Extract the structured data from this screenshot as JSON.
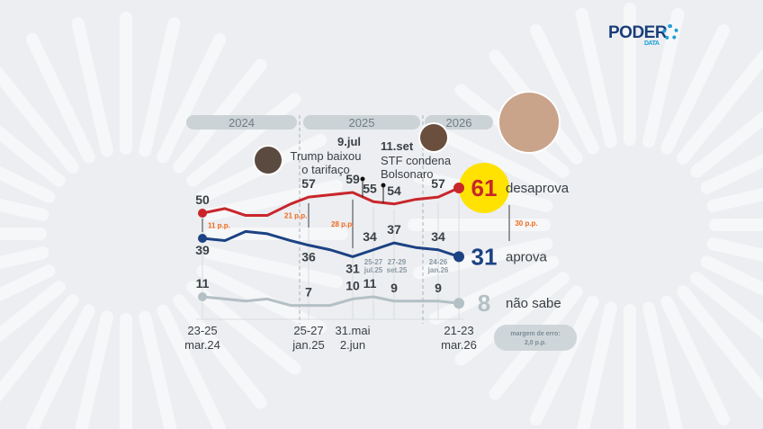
{
  "logo": {
    "text": "PODER",
    "sub": "DATA"
  },
  "years": [
    "2024",
    "2025",
    "2026"
  ],
  "colors": {
    "desaprova": "#c8262b",
    "aprova": "#1c4283",
    "nao_sabe": "#b3c0c6",
    "highlight": "#ffe200",
    "gap": "#f06a1e"
  },
  "annotations": {
    "trump": "Trump baixou",
    "trump2": "o tarifaço",
    "jul": "9.jul",
    "set": "11.set",
    "set2": "STF condena",
    "set3": "Bolsonaro"
  },
  "gaps": [
    "11 p.p.",
    "21 p.p.",
    "28 p.p.",
    "30 p.p."
  ],
  "margin": {
    "l1": "margem de erro:",
    "l2": "2,0 p.p."
  },
  "chart_data": {
    "type": "line",
    "x_labels": [
      [
        "23-25",
        "mar.24"
      ],
      [
        "25-27",
        "jan.25"
      ],
      [
        "31.mai",
        "2.jun"
      ],
      [
        "21-23",
        "mar.26"
      ]
    ],
    "small_x_labels": [
      [
        "25-27",
        "jul.25"
      ],
      [
        "27-29",
        "set.25"
      ],
      [
        "24-26",
        "jan.26"
      ]
    ],
    "series": [
      {
        "name": "desaprova",
        "values": [
          50,
          52,
          49,
          49,
          54,
          57,
          58,
          59,
          55,
          54,
          56,
          57,
          61
        ]
      },
      {
        "name": "aprova",
        "values": [
          39,
          38,
          42,
          41,
          38,
          36,
          34,
          31,
          34,
          37,
          35,
          34,
          31
        ]
      },
      {
        "name": "não sabe",
        "values": [
          11,
          10,
          9,
          10,
          7,
          7,
          7,
          10,
          11,
          9,
          9,
          9,
          8
        ]
      }
    ],
    "labeled": {
      "desaprova": [
        0,
        5,
        7,
        8,
        9,
        11,
        12
      ],
      "aprova": [
        0,
        5,
        7,
        8,
        9,
        11,
        12
      ],
      "não sabe": [
        0,
        5,
        7,
        8,
        9,
        11,
        12
      ]
    }
  }
}
